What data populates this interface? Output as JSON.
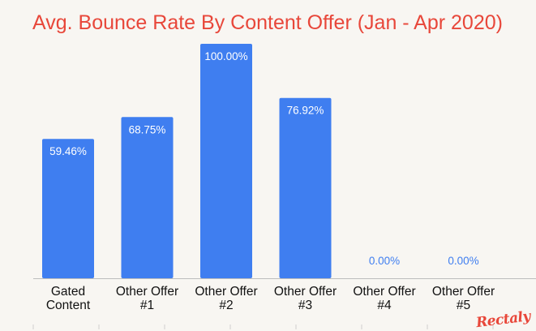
{
  "chart_data": {
    "type": "bar",
    "title": "Avg. Bounce Rate By Content Offer (Jan - Apr 2020)",
    "xlabel": "",
    "ylabel": "",
    "categories": [
      [
        "Gated",
        "Content"
      ],
      [
        "Other Offer",
        "#1"
      ],
      [
        "Other Offer",
        "#2"
      ],
      [
        "Other Offer",
        "#3"
      ],
      [
        "Other Offer",
        "#4"
      ],
      [
        "Other Offer",
        "#5"
      ]
    ],
    "values": [
      59.46,
      68.75,
      100.0,
      76.92,
      0.0,
      0.0
    ],
    "data_labels": [
      "59.46%",
      "68.75%",
      "100.00%",
      "76.92%",
      "0.00%",
      "0.00%"
    ],
    "ylim": [
      0,
      100
    ],
    "grid": false,
    "legend": "none",
    "colors": {
      "bar": "#3f7ef0",
      "title": "#e8473a",
      "label_inside": "#ffffff",
      "label_outside": "#3f7ef0",
      "axis": "#bdbdbd",
      "background": "#f8f6f2"
    }
  },
  "branding": {
    "logo_text": "Rectaly",
    "logo_color": "#e8473a"
  }
}
